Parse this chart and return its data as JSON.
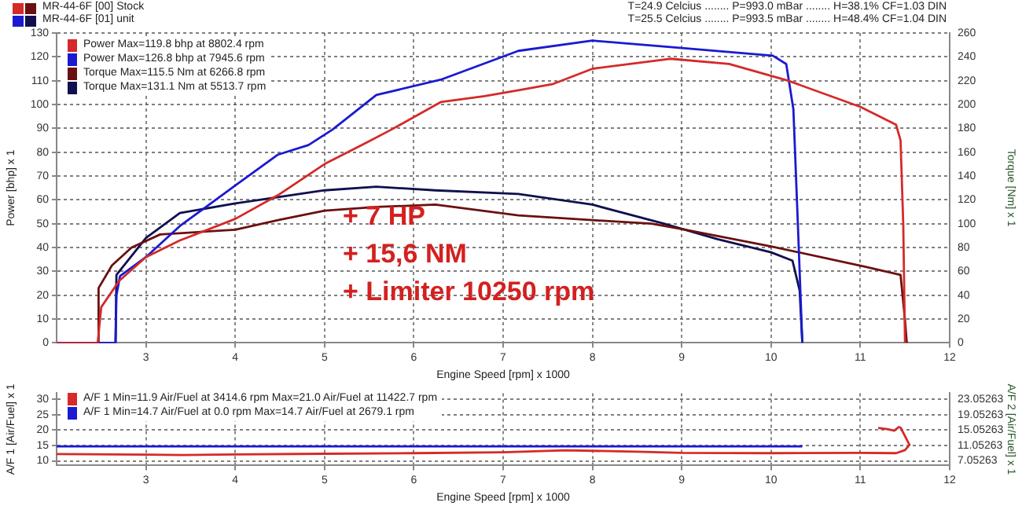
{
  "chart_data": [
    {
      "type": "line",
      "xlabel": "Engine Speed [rpm] x 1000",
      "ylabel": "Power [bhp] x 1",
      "y2label": "Torque [Nm] x 1",
      "xlim": [
        2,
        12
      ],
      "xticks": [
        3,
        4,
        5,
        6,
        7,
        8,
        9,
        10,
        11,
        12
      ],
      "ylim": [
        0,
        130
      ],
      "yticks": [
        0,
        10,
        20,
        30,
        40,
        50,
        60,
        70,
        80,
        90,
        100,
        110,
        120,
        130
      ],
      "y2lim": [
        0,
        260
      ],
      "y2ticks": [
        0,
        20,
        40,
        60,
        80,
        100,
        120,
        140,
        160,
        180,
        200,
        220,
        240,
        260
      ],
      "grid": true,
      "legend": "top left",
      "annotations": [
        "MR-44-6F [00]  Stock",
        "MR-44-6F [01]  unit",
        "T=24.9 Celcius ........ P=993.0 mBar ........ H=38.1% CF=1.03 DIN",
        "T=25.5 Celcius ........ P=993.5 mBar ........ H=48.4% CF=1.04 DIN",
        "+ 7 HP",
        "+ 15,6 NM",
        "+ Limiter 10250 rpm"
      ],
      "series": [
        {
          "name": "Power Max=119.8 bhp at 8802.4 rpm",
          "color": "#d42a2a",
          "x": [
            2,
            2.46,
            2.5,
            2.7,
            3.0,
            3.38,
            4.0,
            4.48,
            5.0,
            5.47,
            5.75,
            6.3,
            6.79,
            7.17,
            7.55,
            8.0,
            8.87,
            9.53,
            10.19,
            11.0,
            11.4,
            11.45,
            11.48,
            11.5
          ],
          "values": [
            0,
            0,
            15,
            26,
            36,
            43,
            52,
            62,
            75,
            84,
            89.5,
            101,
            103.5,
            106,
            108.5,
            115,
            119.2,
            117,
            110,
            99,
            91.5,
            85,
            50,
            0
          ]
        },
        {
          "name": "Power Max=126.8 bhp at 7945.6 rpm",
          "color": "#1a1ad0",
          "x": [
            2,
            2.66,
            2.67,
            2.71,
            3.0,
            3.38,
            4.0,
            4.48,
            4.82,
            5.09,
            5.58,
            6.3,
            7.17,
            8.0,
            8.82,
            10.02,
            10.17,
            10.25,
            10.3,
            10.35
          ],
          "values": [
            0,
            0,
            20,
            28,
            36,
            49,
            66,
            79,
            83,
            89.5,
            104,
            110.4,
            122.5,
            126.8,
            124.3,
            120.5,
            117,
            98,
            50,
            0
          ]
        },
        {
          "name": "Torque Max=115.5 Nm at 6266.8 rpm",
          "color": "#6b1010",
          "axis": "y2",
          "x": [
            2,
            2.46,
            2.47,
            2.62,
            2.84,
            3.16,
            4.0,
            4.48,
            5.0,
            5.58,
            6.24,
            7.17,
            8.0,
            8.66,
            9.04,
            10.0,
            11.05,
            11.45,
            11.5,
            11.52
          ],
          "values": [
            0,
            0,
            46,
            65,
            80,
            91,
            95,
            103,
            111,
            114,
            116,
            107,
            103,
            100,
            95,
            81,
            64,
            57,
            19,
            0
          ]
        },
        {
          "name": "Torque Max=131.1 Nm at 5513.7 rpm",
          "color": "#101050",
          "axis": "y2",
          "x": [
            2,
            2.66,
            2.67,
            3.0,
            3.38,
            4.0,
            5.0,
            5.58,
            6.24,
            7.17,
            8.0,
            8.8,
            9.4,
            10.0,
            10.24,
            10.32,
            10.35
          ],
          "values": [
            0,
            0,
            57,
            88,
            109,
            117,
            128,
            131,
            128,
            125,
            116,
            100,
            87,
            76,
            69,
            44,
            0
          ]
        }
      ]
    },
    {
      "type": "line",
      "xlabel": "Engine Speed [rpm] x 1000",
      "ylabel": "A/F 1 [Air/Fuel] x 1",
      "y2label": "A/F 2 [Air/Fuel] x 1",
      "xlim": [
        2,
        12
      ],
      "xticks": [
        3,
        4,
        5,
        6,
        7,
        8,
        9,
        10,
        11,
        12
      ],
      "ylim": [
        8.5,
        32
      ],
      "yticks": [
        10,
        15,
        20,
        25,
        30
      ],
      "y2lim": [
        5.85263,
        24.65263
      ],
      "y2ticks": [
        7.05263,
        11.05263,
        15.05263,
        19.05263,
        23.05263
      ],
      "grid": true,
      "legend": "top left",
      "series": [
        {
          "name": "A/F 1 Min=11.9 Air/Fuel at 3414.6 rpm  Max=21.0 Air/Fuel at 11422.7 rpm",
          "color": "#d42a2a",
          "x": [
            2,
            3.0,
            3.41,
            4.0,
            5.0,
            6.0,
            7.0,
            7.7,
            8.5,
            9.0,
            10.0,
            11.0,
            11.4,
            11.5,
            11.55,
            11.5,
            11.45,
            11.43,
            11.38,
            11.3,
            11.2
          ],
          "values": [
            12.2,
            12.0,
            11.9,
            12.1,
            12.3,
            12.5,
            12.8,
            13.4,
            13.0,
            12.6,
            12.5,
            12.6,
            12.5,
            13.5,
            15.2,
            18,
            20.8,
            21.0,
            19.8,
            20.3,
            20.7
          ]
        },
        {
          "name": "A/F 1 Min=14.7 Air/Fuel at 0.0 rpm  Max=14.7 Air/Fuel at 2679.1 rpm",
          "color": "#1a1ad0",
          "x": [
            2,
            10.35
          ],
          "values": [
            14.7,
            14.7
          ]
        }
      ]
    }
  ]
}
